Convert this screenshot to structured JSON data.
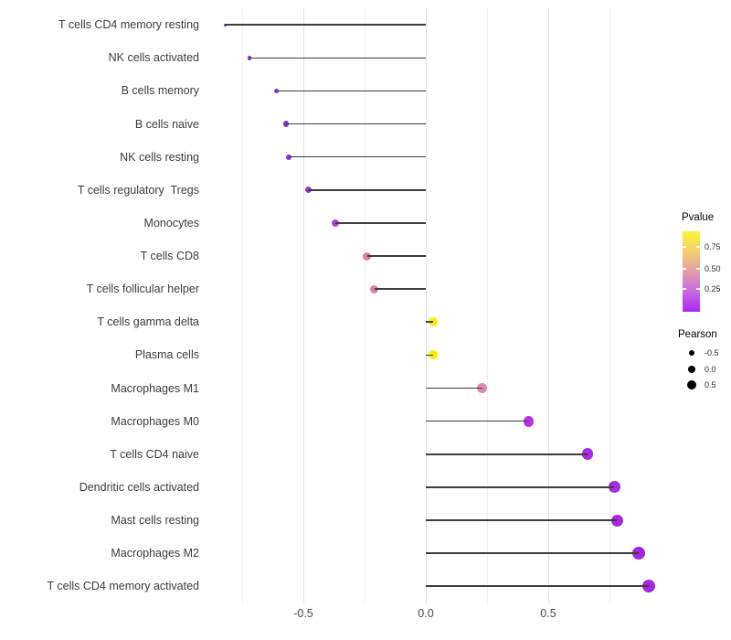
{
  "chart_data": {
    "type": "scatter",
    "variant": "lollipop",
    "title": "",
    "xlabel": "",
    "ylabel": "",
    "x_axis": {
      "major_ticks": [
        {
          "value": -0.5,
          "label": "-0.5"
        },
        {
          "value": 0.0,
          "label": "0.0"
        },
        {
          "value": 0.5,
          "label": "0.5"
        }
      ],
      "minor_gridlines": [
        -0.75,
        -0.25,
        0.25,
        0.75
      ],
      "range_approx": [
        -0.9,
        1.0
      ],
      "grid": "vertical-only"
    },
    "points": [
      {
        "label": "T cells CD4 memory resting",
        "pearson": -0.82,
        "color": "#7E2ACC",
        "radius": 1.6
      },
      {
        "label": "NK cells activated",
        "pearson": -0.72,
        "color": "#8730D4",
        "radius": 2.4
      },
      {
        "label": "B cells memory",
        "pearson": -0.61,
        "color": "#8A2FD2",
        "radius": 2.9
      },
      {
        "label": "B cells naive",
        "pearson": -0.57,
        "color": "#8C31D4",
        "radius": 3.1
      },
      {
        "label": "NK cells resting",
        "pearson": -0.56,
        "color": "#8C31D4",
        "radius": 3.1
      },
      {
        "label": "T cells regulatory  Tregs",
        "pearson": -0.48,
        "color": "#9136D6",
        "radius": 3.6
      },
      {
        "label": "Monocytes",
        "pearson": -0.37,
        "color": "#B13FD0",
        "radius": 4.1
      },
      {
        "label": "T cells CD8",
        "pearson": -0.24,
        "color": "#DA80AA",
        "radius": 4.5
      },
      {
        "label": "T cells follicular helper",
        "pearson": -0.21,
        "color": "#D880AE",
        "radius": 4.6
      },
      {
        "label": "T cells gamma delta",
        "pearson": 0.03,
        "color": "#F6F002",
        "radius": 5.0
      },
      {
        "label": "Plasma cells",
        "pearson": 0.03,
        "color": "#F6F002",
        "radius": 5.0
      },
      {
        "label": "Macrophages M1",
        "pearson": 0.23,
        "color": "#DE87AF",
        "radius": 5.5
      },
      {
        "label": "Macrophages M0",
        "pearson": 0.42,
        "color": "#BC32E0",
        "radius": 5.9
      },
      {
        "label": "T cells CD4 naive",
        "pearson": 0.66,
        "color": "#A72BE2",
        "radius": 6.3
      },
      {
        "label": "Dendritic cells activated",
        "pearson": 0.77,
        "color": "#A42BE0",
        "radius": 6.5
      },
      {
        "label": "Mast cells resting",
        "pearson": 0.78,
        "color": "#A42BE0",
        "radius": 6.5
      },
      {
        "label": "Macrophages M2",
        "pearson": 0.87,
        "color": "#A228E0",
        "radius": 6.8
      },
      {
        "label": "T cells CD4 memory activated",
        "pearson": 0.91,
        "color": "#A228E0",
        "radius": 7.0
      }
    ],
    "segment_color": "#3d3d3d",
    "segment_origin": 0.0
  },
  "legends": {
    "pvalue": {
      "title": "Pvalue",
      "tick_labels": [
        "0.75",
        "0.50",
        "0.25"
      ],
      "gradient_top_to_bottom": [
        "#F8F636",
        "#F3CF6E",
        "#E49DA8",
        "#C76ADF",
        "#A928F0"
      ]
    },
    "pearson": {
      "title": "Pearson",
      "dot_color": "#000000",
      "items": [
        {
          "label": "-0.5",
          "radius": 3.2
        },
        {
          "label": "0.0",
          "radius": 4.4
        },
        {
          "label": "0.5",
          "radius": 5.2
        }
      ]
    }
  }
}
